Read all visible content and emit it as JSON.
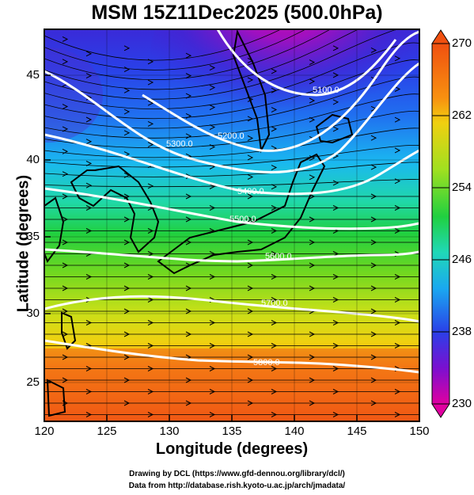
{
  "title": "MSM 15Z11Dec2025 (500.0hPa)",
  "xlabel": "Longitude (degrees)",
  "ylabel": "Latitude  (degrees)",
  "footer": {
    "line1": "Drawing by DCL (https://www.gfd-dennou.org/library/dcl/)",
    "line2": "Data from http://database.rish.kyoto-u.ac.jp/arch/jmadata/"
  },
  "chart_data": {
    "type": "heatmap",
    "variable": "temperature (K) shading with geopotential height contours and wind streamlines",
    "xlim": [
      120,
      150
    ],
    "ylim": [
      22.5,
      47.5
    ],
    "x_ticks": [
      "120",
      "125",
      "130",
      "135",
      "140",
      "145",
      "150"
    ],
    "y_ticks": [
      "25",
      "30",
      "35",
      "40",
      "45"
    ],
    "colorbar": {
      "range": [
        230,
        270
      ],
      "ticks": [
        "270",
        "262",
        "254",
        "246",
        "238",
        "230"
      ],
      "colors": [
        "#e0009a",
        "#7a00d0",
        "#2a28e0",
        "#1aa8f0",
        "#20d8b8",
        "#18d040",
        "#90e020",
        "#f0e010",
        "#f89010",
        "#f04010"
      ]
    },
    "contour_labels": [
      "5100.0",
      "5200.0",
      "5300.0",
      "5400.0",
      "5500.0",
      "5600.0",
      "5700.0",
      "5800.0"
    ],
    "grid": true
  }
}
